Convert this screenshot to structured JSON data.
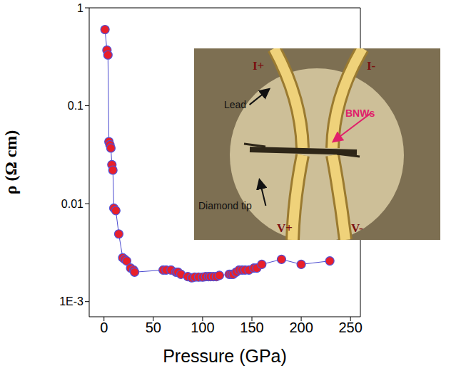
{
  "chart_data": {
    "type": "line",
    "x_label": "Pressure (GPa)",
    "y_label": "ρ (Ω cm)",
    "log": "y",
    "grid": false,
    "marker": "circle",
    "line_style": "solid",
    "color": "#e8202a",
    "x": [
      1,
      3,
      4,
      5,
      6,
      7,
      8,
      9,
      10,
      12,
      15,
      19,
      21,
      23,
      27,
      30,
      31,
      60,
      63,
      68,
      73,
      75,
      78,
      85,
      89,
      92,
      96,
      100,
      103,
      106,
      108,
      111,
      114,
      117,
      127,
      129,
      131,
      134,
      137,
      140,
      143,
      147,
      152,
      155,
      160,
      180,
      200,
      229
    ],
    "values": [
      0.6,
      0.37,
      0.33,
      0.043,
      0.04,
      0.037,
      0.025,
      0.022,
      0.009,
      0.0085,
      0.0049,
      0.0028,
      0.0027,
      0.0026,
      0.0022,
      0.0021,
      0.002,
      0.0021,
      0.0021,
      0.0021,
      0.002,
      0.002,
      0.0019,
      0.0018,
      0.00175,
      0.00178,
      0.00178,
      0.00178,
      0.0018,
      0.0018,
      0.0018,
      0.0018,
      0.0018,
      0.00185,
      0.0019,
      0.0019,
      0.0019,
      0.002,
      0.0021,
      0.0021,
      0.0021,
      0.0021,
      0.0022,
      0.0022,
      0.0024,
      0.0027,
      0.0024,
      0.0026
    ],
    "xlim": [
      -15,
      260
    ],
    "xticks": [
      0,
      50,
      100,
      150,
      200,
      250
    ],
    "ylim": [
      0.0007,
      1
    ],
    "yticks": [
      {
        "value": 0.001,
        "label": "1E-3"
      },
      0.01,
      0.1,
      1
    ],
    "annotations": [
      {
        "text": "I+",
        "color": "#7a1010"
      },
      {
        "text": "I-",
        "color": "#7a1010"
      },
      {
        "text": "Lead",
        "color": "#111111"
      },
      {
        "text": "BNWs",
        "color": "#e0206a"
      },
      {
        "text": "Diamond tip",
        "color": "#111111"
      },
      {
        "text": "V+",
        "color": "#7a1010"
      },
      {
        "text": "V-",
        "color": "#7a1010"
      }
    ]
  }
}
